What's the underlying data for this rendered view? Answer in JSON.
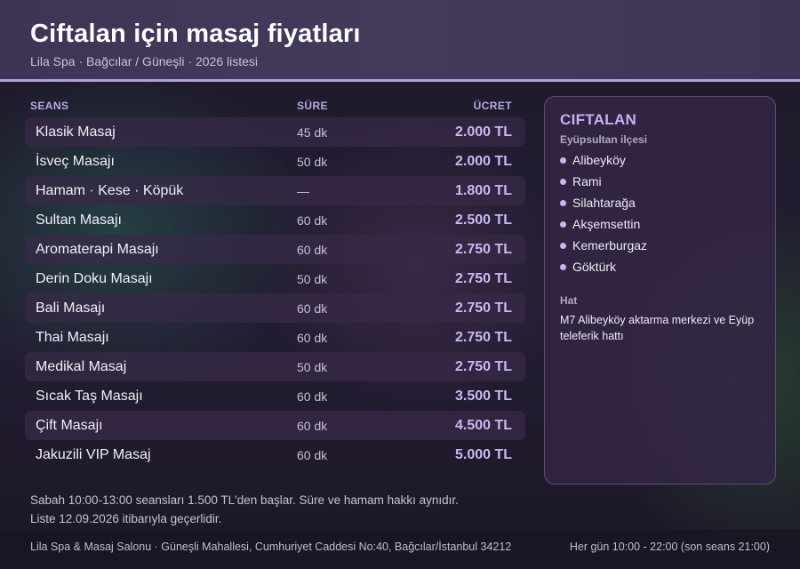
{
  "header": {
    "title": "Ciftalan için masaj fiyatları",
    "subtitle": "Lila Spa · Bağcılar / Güneşli · 2026 listesi"
  },
  "table": {
    "columns": {
      "name": "SEANS",
      "duration": "SÜRE",
      "price": "ÜCRET"
    },
    "rows": [
      {
        "name": "Klasik Masaj",
        "duration": "45 dk",
        "price": "2.000 TL"
      },
      {
        "name": "İsveç Masajı",
        "duration": "50 dk",
        "price": "2.000 TL"
      },
      {
        "name": "Hamam · Kese · Köpük",
        "duration": "—",
        "price": "1.800 TL"
      },
      {
        "name": "Sultan Masajı",
        "duration": "60 dk",
        "price": "2.500 TL"
      },
      {
        "name": "Aromaterapi Masajı",
        "duration": "60 dk",
        "price": "2.750 TL"
      },
      {
        "name": "Derin Doku Masajı",
        "duration": "50 dk",
        "price": "2.750 TL"
      },
      {
        "name": "Bali Masajı",
        "duration": "60 dk",
        "price": "2.750 TL"
      },
      {
        "name": "Thai Masajı",
        "duration": "60 dk",
        "price": "2.750 TL"
      },
      {
        "name": "Medikal Masaj",
        "duration": "50 dk",
        "price": "2.750 TL"
      },
      {
        "name": "Sıcak Taş Masajı",
        "duration": "60 dk",
        "price": "3.500 TL"
      },
      {
        "name": "Çift Masajı",
        "duration": "60 dk",
        "price": "4.500 TL"
      },
      {
        "name": "Jakuzili VIP Masaj",
        "duration": "60 dk",
        "price": "5.000 TL"
      }
    ]
  },
  "sidebar": {
    "title": "CIFTALAN",
    "district": "Eyüpsultan ilçesi",
    "neighborhoods": [
      "Alibeyköy",
      "Rami",
      "Silahtarağa",
      "Akşemsettin",
      "Kemerburgaz",
      "Göktürk"
    ],
    "transit_label": "Hat",
    "transit_text": "M7 Alibeyköy aktarma merkezi ve Eyüp teleferik hattı"
  },
  "notes": {
    "line1": "Sabah 10:00-13:00 seansları 1.500 TL'den başlar. Süre ve hamam hakkı aynıdır.",
    "line2": "Liste 12.09.2026 itibarıyla geçerlidir."
  },
  "footer": {
    "address": "Lila Spa & Masaj Salonu · Güneşli Mahallesi, Cumhuriyet Caddesi No:40, Bağcılar/İstanbul 34212",
    "hours": "Her gün 10:00 - 22:00 (son seans 21:00)"
  },
  "colors": {
    "accent": "#b49ee0",
    "price": "#c9b8f2",
    "header_bg": "#3d3456"
  }
}
